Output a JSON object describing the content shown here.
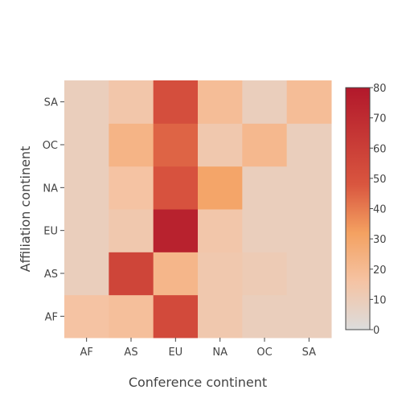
{
  "chart_data": {
    "type": "heatmap",
    "xlabel": "Conference continent",
    "ylabel": "Affiliation continent",
    "x_categories": [
      "AF",
      "AS",
      "EU",
      "NA",
      "OC",
      "SA"
    ],
    "y_categories": [
      "AF",
      "AS",
      "EU",
      "NA",
      "OC",
      "SA"
    ],
    "z": [
      [
        16,
        18,
        54,
        13,
        9,
        9
      ],
      [
        9,
        57,
        22,
        13,
        11,
        9
      ],
      [
        9,
        13,
        75,
        14,
        9,
        9
      ],
      [
        9,
        16,
        50,
        30,
        9,
        9
      ],
      [
        9,
        23,
        45,
        13,
        21,
        9
      ],
      [
        9,
        14,
        52,
        19,
        9,
        19
      ]
    ],
    "colorscale": {
      "min": 0,
      "max": 80,
      "ticks": [
        "0",
        "10",
        "20",
        "30",
        "40",
        "50",
        "60",
        "70",
        "80"
      ],
      "stops": [
        [
          0.0,
          "#dcdcdc"
        ],
        [
          0.2,
          "#f5c3a3"
        ],
        [
          0.4,
          "#f4a161"
        ],
        [
          0.6,
          "#d9563f"
        ],
        [
          1.0,
          "#b2182b"
        ]
      ]
    }
  }
}
